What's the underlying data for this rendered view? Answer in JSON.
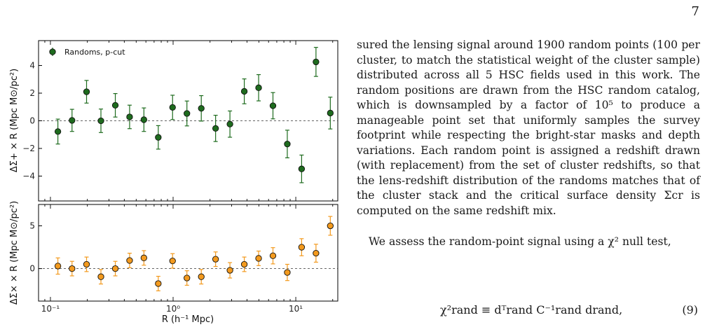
{
  "page": {
    "number": "7"
  },
  "text": {
    "paragraph1": "sured the lensing signal around 1900 random points (100 per cluster, to match the statistical weight of the cluster sample) distributed across all 5 HSC fields used in this work. The random positions are drawn from the HSC random catalog, which is downsampled by a factor of 10⁵ to produce a manageable point set that uniformly samples the survey footprint while respecting the bright-star masks and depth variations. Each random point is assigned a redshift drawn (with replacement) from the set of cluster redshifts, so that the lens-redshift distribution of the randoms matches that of the cluster stack and the critical surface density Σcr is computed on the same redshift mix.",
    "paragraph2": "We assess the random-point signal using a χ² null test,",
    "equation": "χ²rand ≡ dᵀrand C⁻¹rand drand,",
    "equation_number": "(9)"
  },
  "chart_data": [
    {
      "type": "scatter",
      "panel": "top",
      "xscale": "log",
      "xlim": [
        0.08,
        22
      ],
      "ylim": [
        -5.8,
        5.8
      ],
      "yticks": [
        -4,
        -2,
        0,
        2,
        4
      ],
      "ytick_labels": [
        "−4",
        "−2",
        "0",
        "2",
        "4"
      ],
      "ylabel": "ΔΣ+ × R (Mpc M⊙/pc²)",
      "legend": {
        "label": "Randoms, p-cut",
        "placement": "top-left"
      },
      "reference_line": 0,
      "color": "#1e6b1e",
      "series": [
        {
          "name": "Randoms, p-cut",
          "x": [
            0.115,
            0.15,
            0.197,
            0.258,
            0.338,
            0.442,
            0.578,
            0.757,
            0.99,
            1.296,
            1.697,
            2.22,
            2.906,
            3.804,
            4.979,
            6.516,
            8.529,
            11.16,
            14.61,
            19.12
          ],
          "y": [
            -0.78,
            0.03,
            2.1,
            0.0,
            1.12,
            0.28,
            0.08,
            -1.2,
            0.97,
            0.53,
            0.9,
            -0.55,
            -0.24,
            2.13,
            2.39,
            1.09,
            -1.68,
            -3.48,
            4.26,
            0.56
          ],
          "err": [
            0.9,
            0.8,
            0.82,
            0.85,
            0.85,
            0.85,
            0.85,
            0.85,
            0.88,
            0.9,
            0.92,
            0.95,
            0.95,
            0.9,
            0.95,
            0.95,
            1.0,
            1.0,
            1.05,
            1.15
          ]
        }
      ]
    },
    {
      "type": "scatter",
      "panel": "bottom",
      "xscale": "log",
      "xlim": [
        0.08,
        22
      ],
      "ylim": [
        -3.8,
        7.5
      ],
      "yticks": [
        0,
        5
      ],
      "ytick_labels": [
        "0",
        "5"
      ],
      "xticks": [
        0.1,
        1,
        10
      ],
      "xtick_labels": [
        "10⁻¹",
        "10⁰",
        "10¹"
      ],
      "xlabel": "R (h⁻¹ Mpc)",
      "ylabel": "ΔΣ× × R (Mpc M⊙/pc²)",
      "reference_line": 0,
      "color": "#f39a1e",
      "series": [
        {
          "x": [
            0.115,
            0.15,
            0.197,
            0.258,
            0.338,
            0.442,
            0.578,
            0.757,
            0.99,
            1.296,
            1.697,
            2.22,
            2.906,
            3.804,
            4.979,
            6.516,
            8.529,
            11.16,
            14.61,
            19.12
          ],
          "y": [
            0.3,
            0.0,
            0.5,
            -0.95,
            0.0,
            0.95,
            1.25,
            -1.75,
            0.9,
            -1.1,
            -0.95,
            1.1,
            -0.2,
            0.5,
            1.2,
            1.5,
            -0.45,
            2.5,
            1.8,
            5.0
          ],
          "err": [
            0.95,
            0.85,
            0.85,
            0.85,
            0.85,
            0.85,
            0.85,
            0.85,
            0.85,
            0.85,
            0.85,
            0.85,
            0.9,
            0.85,
            0.85,
            0.95,
            0.95,
            1.0,
            1.05,
            1.1
          ]
        }
      ]
    }
  ]
}
